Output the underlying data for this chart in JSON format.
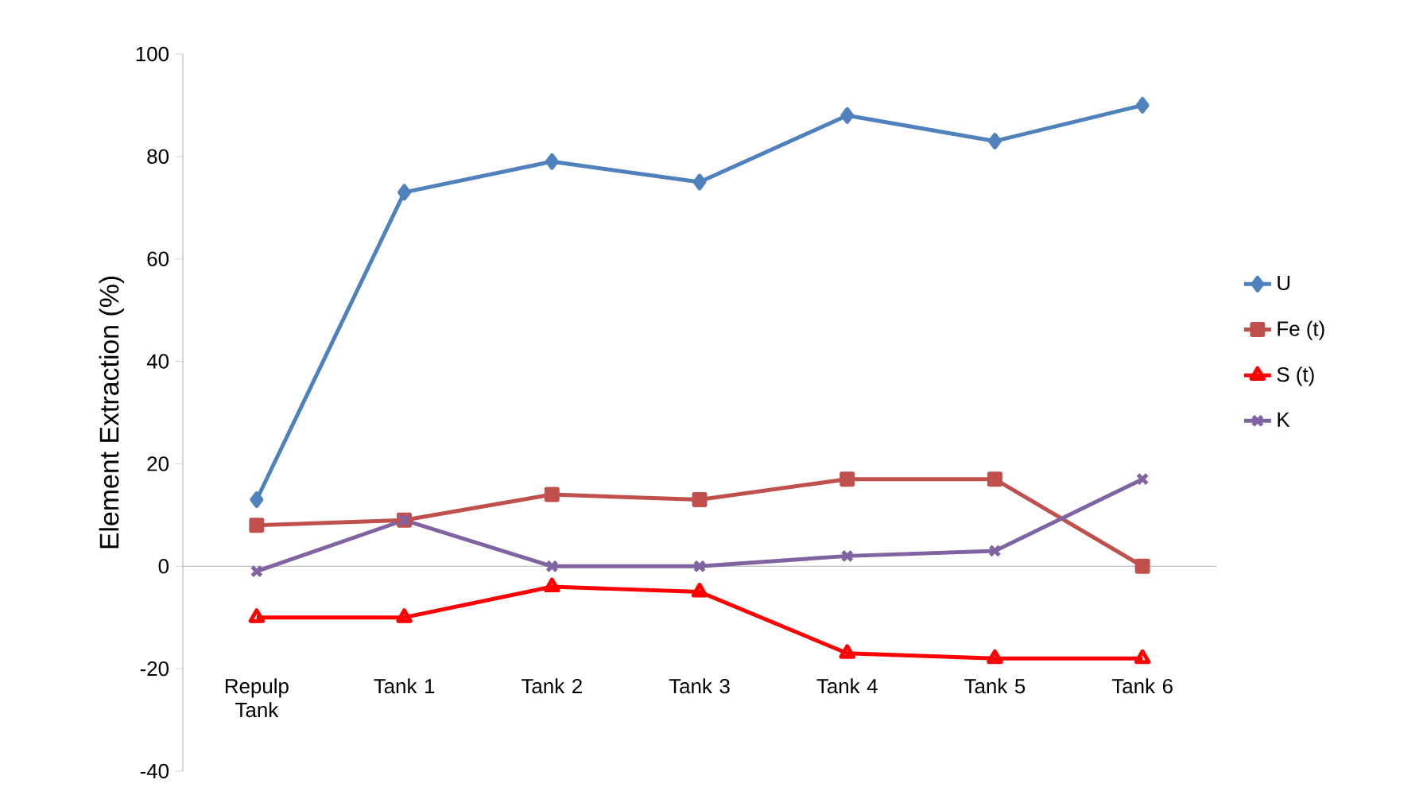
{
  "chart_data": {
    "type": "line",
    "ylabel": "Element Extraction (%)",
    "categories": [
      "Repulp Tank",
      "Tank 1",
      "Tank 2",
      "Tank 3",
      "Tank 4",
      "Tank 5",
      "Tank 6"
    ],
    "series": [
      {
        "name": "U",
        "color": "#4f81bd",
        "marker": "diamond",
        "values": [
          13,
          73,
          79,
          75,
          88,
          83,
          90
        ]
      },
      {
        "name": "Fe (t)",
        "color": "#c0504d",
        "marker": "square",
        "values": [
          8,
          9,
          14,
          13,
          17,
          17,
          0
        ]
      },
      {
        "name": "S (t)",
        "color": "#ff0000",
        "marker": "triangle",
        "values": [
          -10,
          -10,
          -4,
          -5,
          -17,
          -18,
          -18
        ]
      },
      {
        "name": "K",
        "color": "#8064a2",
        "marker": "cross",
        "values": [
          -1,
          9,
          0,
          0,
          2,
          3,
          17
        ]
      }
    ],
    "ylim": [
      -40,
      100
    ],
    "yticks": [
      -40,
      -20,
      0,
      20,
      40,
      60,
      80,
      100
    ],
    "legend": "right",
    "line_style": "solid"
  }
}
